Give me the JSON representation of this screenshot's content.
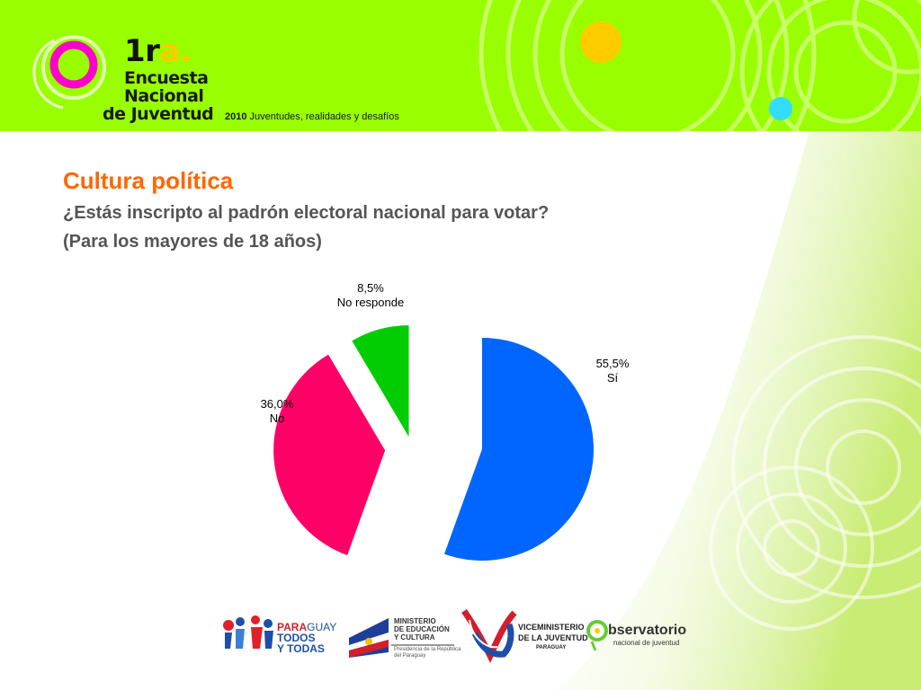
{
  "header": {
    "logo_1ra": "1r",
    "logo_1ra_a": "a.",
    "logo_line1": "Encuesta",
    "logo_line2": "Nacional",
    "logo_line3": "de Juventud",
    "tagline_year": "2010",
    "tagline_text": " Juventudes, realidades y desafíos"
  },
  "slide": {
    "title": "Cultura política",
    "subtitle_line1": "¿Estás inscripto al padrón electoral nacional para votar?",
    "subtitle_line2": "(Para los mayores de 18 años)"
  },
  "chart_data": {
    "type": "pie",
    "title": "",
    "slices": [
      {
        "label": "Sí",
        "value": 55.5,
        "display": "55,5%",
        "color": "#0066ff",
        "exploded": false
      },
      {
        "label": "No",
        "value": 36.0,
        "display": "36,0%",
        "color": "#ff0066",
        "exploded": true
      },
      {
        "label": "No responde",
        "value": 8.5,
        "display": "8,5%",
        "color": "#00cc00",
        "exploded": true
      }
    ]
  },
  "footer": {
    "paraguay_1": "PARA",
    "paraguay_2": "GUAY",
    "paraguay_3": "TODOS",
    "paraguay_4": "Y TODAS",
    "mec_1": "MINISTERIO",
    "mec_2": "DE EDUCACIÓN",
    "mec_3": "Y CULTURA",
    "mec_4": "Presidencia de la República",
    "mec_5": "del Paraguay",
    "vmj_1": "VICEMINISTERIO",
    "vmj_2": "DE LA JUVENTUD",
    "vmj_3": "PARAGUAY",
    "obs_1": "bservatorio",
    "obs_2": "nacional de juventud"
  }
}
